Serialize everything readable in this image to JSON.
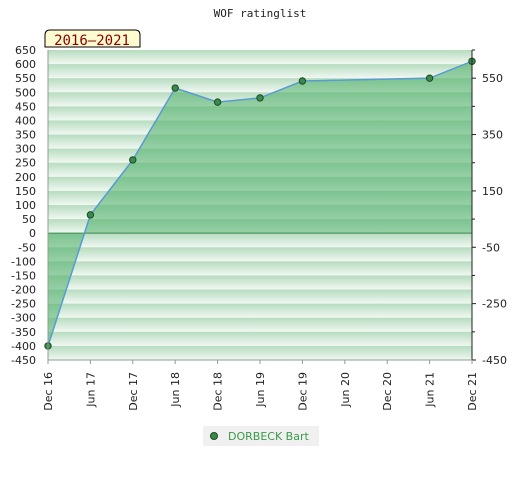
{
  "chart_data": {
    "type": "area",
    "title": "WOF ratinglist",
    "period_label": "2016–2021",
    "categories": [
      "Dec 16",
      "Jun 17",
      "Dec 17",
      "Jun 18",
      "Dec 18",
      "Jun 19",
      "Dec 19",
      "Jun 20",
      "Dec 20",
      "Jun 21",
      "Dec 21"
    ],
    "series": [
      {
        "name": "DORBECK Bart",
        "points": [
          {
            "x": "Dec 16",
            "y": -400
          },
          {
            "x": "Jun 17",
            "y": 65
          },
          {
            "x": "Dec 17",
            "y": 260
          },
          {
            "x": "Jun 18",
            "y": 515
          },
          {
            "x": "Dec 18",
            "y": 465
          },
          {
            "x": "Jun 19",
            "y": 480
          },
          {
            "x": "Dec 19",
            "y": 540
          },
          {
            "x": "Jun 21",
            "y": 550
          },
          {
            "x": "Dec 21",
            "y": 610
          }
        ]
      }
    ],
    "y_left": {
      "ylim": [
        -450,
        650
      ],
      "ticks": [
        650,
        600,
        550,
        500,
        450,
        400,
        350,
        300,
        250,
        200,
        150,
        100,
        50,
        0,
        -50,
        -100,
        -150,
        -200,
        -250,
        -300,
        -350,
        -400,
        -450
      ]
    },
    "y_right": {
      "ticks": [
        550,
        350,
        150,
        -50,
        -250,
        -450
      ]
    },
    "legend_position": "bottom",
    "colors": {
      "line": "#5b9bd5",
      "fill": "#4caf67",
      "marker_fill": "#3a8a4c",
      "marker_stroke": "#1d4a26",
      "band_dark": "#b6dcbf",
      "band_light": "#f1f8f2",
      "badge_bg": "#fffbd0",
      "badge_text": "#8a0000",
      "legend_text": "#3a9a4a"
    }
  }
}
